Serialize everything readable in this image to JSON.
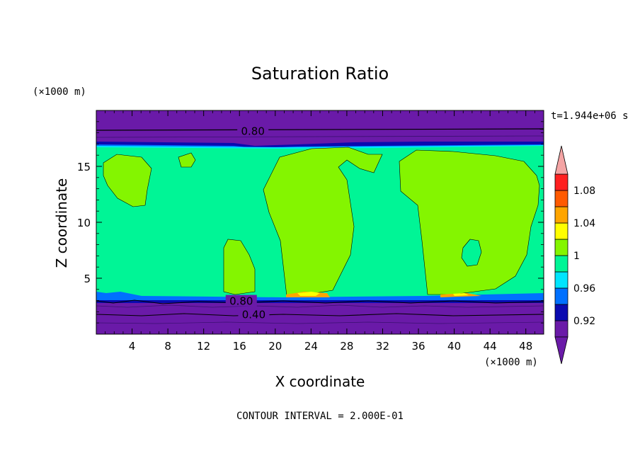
{
  "chart_data": {
    "type": "contour",
    "title": "Saturation Ratio",
    "xlabel": "X coordinate",
    "ylabel": "Z coordinate",
    "x_unit": "(×1000 m)",
    "y_unit": "(×1000 m)",
    "time_label": "t=1.944e+06 s",
    "footer": "CONTOUR INTERVAL = 2.000E-01",
    "xlim": [
      0,
      50
    ],
    "ylim": [
      0,
      20
    ],
    "x_ticks": [
      4,
      8,
      12,
      16,
      20,
      24,
      28,
      32,
      36,
      40,
      44,
      48
    ],
    "y_ticks": [
      5,
      10,
      15
    ],
    "colorbar": {
      "labels": [
        "0.92",
        "0.96",
        "1",
        "1.04",
        "1.08"
      ],
      "levels": [
        0.9,
        0.92,
        0.94,
        0.96,
        0.98,
        1.0,
        1.02,
        1.04,
        1.06,
        1.08,
        1.1
      ],
      "colors": [
        "#6a1aa8",
        "#0a0ab0",
        "#0070ff",
        "#00e5ff",
        "#00f596",
        "#84f500",
        "#ffff00",
        "#ffa500",
        "#ff5a00",
        "#ff2020"
      ],
      "under_color": "#6a1aa8",
      "over_color": "#f4a4a4"
    },
    "contour_labels": [
      {
        "text": "0.80",
        "x": 17.5,
        "z": 18.2
      },
      {
        "text": "0.80",
        "x": 16.2,
        "z": 3.0
      },
      {
        "text": "0.40",
        "x": 17.6,
        "z": 1.8
      }
    ]
  }
}
